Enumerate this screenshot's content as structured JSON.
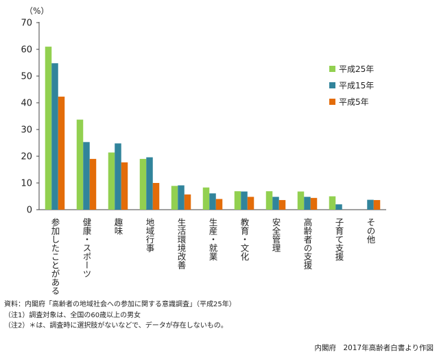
{
  "chart_data": {
    "type": "bar",
    "ylabel": "（%）",
    "ylim": [
      0,
      70
    ],
    "yticks": [
      0,
      10,
      20,
      30,
      40,
      50,
      60,
      70
    ],
    "grid": false,
    "legend_position": "right",
    "categories": [
      "参加したことがある",
      "健康・スポーツ",
      "趣味",
      "地域行事",
      "生活環境改善",
      "生産・就業",
      "教育・文化",
      "安全管理",
      "高齢者の支援",
      "子育て支援",
      "その他"
    ],
    "series": [
      {
        "name": "平成25年",
        "color": "#92d050",
        "values": [
          61.0,
          33.7,
          21.4,
          19.0,
          8.9,
          8.3,
          6.9,
          6.9,
          6.8,
          5.0,
          null
        ]
      },
      {
        "name": "平成15年",
        "color": "#31849b",
        "values": [
          54.8,
          25.3,
          24.8,
          19.6,
          9.1,
          6.1,
          6.8,
          4.8,
          4.8,
          2.0,
          3.7
        ]
      },
      {
        "name": "平成5年",
        "color": "#e36c09",
        "values": [
          42.3,
          19.0,
          17.7,
          10.0,
          5.7,
          4.0,
          4.8,
          3.6,
          4.4,
          null,
          3.6
        ]
      }
    ]
  },
  "notes": [
    "資料：内閣府「高齢者の地域社会への参加に関する意識調査」（平成25年）",
    "（注1）調査対象は、全国の60歳以上の男女",
    "（注2）＊は、調査時に選択肢がないなどで、データが存在しないもの。"
  ],
  "credit": "内閣府　2017年高齢者白書より作図"
}
